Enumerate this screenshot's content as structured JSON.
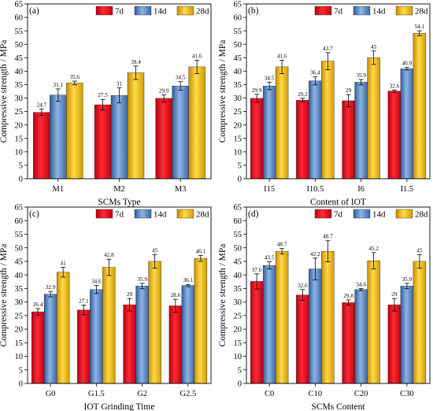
{
  "colors": {
    "7d": "#e4001b",
    "14d": "#4a7fc1",
    "28d": "#e8b400"
  },
  "chart_data": [
    {
      "type": "bar",
      "panel_label": "(a)",
      "categories": [
        "M1",
        "M2",
        "M3"
      ],
      "series": [
        {
          "name": "7d",
          "values": [
            24.7,
            27.5,
            29.9
          ],
          "errors": [
            1.2,
            2.0,
            1.3
          ]
        },
        {
          "name": "14d",
          "values": [
            31.1,
            31,
            34.5
          ],
          "errors": [
            2.3,
            2.8,
            1.6
          ]
        },
        {
          "name": "28d",
          "values": [
            35.6,
            39.4,
            41.6
          ],
          "errors": [
            0.7,
            2.5,
            2.5
          ]
        }
      ],
      "labels": [
        [
          "24.7",
          "27.5",
          "29.9"
        ],
        [
          "31.1",
          "31",
          "34.5"
        ],
        [
          "35.6",
          "39.4",
          "41.6"
        ]
      ],
      "xlabel": "SCMs Type",
      "ylabel": "Compressive strength / MPa",
      "ylim": [
        0,
        65
      ],
      "yticks": [
        "0",
        "5",
        "10",
        "15",
        "20",
        "25",
        "30",
        "35",
        "40",
        "45",
        "50",
        "55",
        "60",
        "65"
      ],
      "legend": [
        "7d",
        "14d",
        "28d"
      ]
    },
    {
      "type": "bar",
      "panel_label": "(b)",
      "categories": [
        "I15",
        "I10.5",
        "I6",
        "I1.5"
      ],
      "series": [
        {
          "name": "7d",
          "values": [
            29.9,
            29.2,
            29,
            32.6
          ],
          "errors": [
            1.5,
            0.7,
            2.3,
            0.4
          ]
        },
        {
          "name": "14d",
          "values": [
            34.5,
            36.4,
            35.9,
            40.9
          ],
          "errors": [
            1.4,
            1.5,
            1.0,
            0.5
          ]
        },
        {
          "name": "28d",
          "values": [
            41.6,
            43.7,
            45,
            54.1
          ],
          "errors": [
            2.5,
            3.2,
            2.5,
            0.9
          ]
        }
      ],
      "labels": [
        [
          "29.9",
          "29.2",
          "29",
          "32.6"
        ],
        [
          "34.5",
          "36.4",
          "35.9",
          "40.9"
        ],
        [
          "41.6",
          "43.7",
          "45",
          "54.1"
        ]
      ],
      "xlabel": "Content of IOT",
      "ylabel": "Compressive strength / MPa",
      "ylim": [
        0,
        65
      ],
      "yticks": [
        "0",
        "5",
        "10",
        "15",
        "20",
        "25",
        "30",
        "35",
        "40",
        "45",
        "50",
        "55",
        "60",
        "65"
      ],
      "legend": [
        "7d",
        "14d",
        "28d"
      ]
    },
    {
      "type": "bar",
      "panel_label": "(c)",
      "categories": [
        "G0",
        "G1.5",
        "G2",
        "G2.5"
      ],
      "series": [
        {
          "name": "7d",
          "values": [
            26.4,
            27.1,
            29,
            28.6
          ],
          "errors": [
            1.2,
            1.8,
            2.3,
            2.4
          ]
        },
        {
          "name": "14d",
          "values": [
            32.9,
            34.6,
            35.9,
            36.1
          ],
          "errors": [
            1.0,
            1.5,
            1.0,
            0.4
          ]
        },
        {
          "name": "28d",
          "values": [
            41,
            42.8,
            45,
            46.1
          ],
          "errors": [
            1.8,
            3.0,
            2.5,
            1.1
          ]
        }
      ],
      "labels": [
        [
          "26.4",
          "27.1",
          "29",
          "28.6"
        ],
        [
          "32.9",
          "34.6",
          "35.9",
          "36.1"
        ],
        [
          "41",
          "42.8",
          "45",
          "46.1"
        ]
      ],
      "xlabel": "IOT Grinding Time",
      "ylabel": "Compressive strength / MPa",
      "ylim": [
        0,
        65
      ],
      "yticks": [
        "0",
        "5",
        "10",
        "15",
        "20",
        "25",
        "30",
        "35",
        "40",
        "45",
        "50",
        "55",
        "60",
        "65"
      ],
      "legend": [
        "7d",
        "14d",
        "28d"
      ]
    },
    {
      "type": "bar",
      "panel_label": "(d)",
      "categories": [
        "C0",
        "C10",
        "C20",
        "C30"
      ],
      "series": [
        {
          "name": "7d",
          "values": [
            37.6,
            32.6,
            29.8,
            29
          ],
          "errors": [
            2.8,
            2.0,
            1.0,
            2.3
          ]
        },
        {
          "name": "14d",
          "values": [
            43.5,
            42.2,
            34.6,
            35.9
          ],
          "errors": [
            1.3,
            4.0,
            0.4,
            1.0
          ]
        },
        {
          "name": "28d",
          "values": [
            48.7,
            48.7,
            45.2,
            45
          ],
          "errors": [
            1.0,
            3.9,
            3.0,
            2.5
          ]
        }
      ],
      "labels": [
        [
          "37.6",
          "32.6",
          "29.8",
          "29"
        ],
        [
          "43.5",
          "42.2",
          "34.6",
          "35.9"
        ],
        [
          "48.7",
          "48.7",
          "45.2",
          "45"
        ]
      ],
      "xlabel": "SCMs Content",
      "ylabel": "Compressive strength / MPa",
      "ylim": [
        0,
        65
      ],
      "yticks": [
        "0",
        "5",
        "10",
        "15",
        "20",
        "25",
        "30",
        "35",
        "40",
        "45",
        "50",
        "55",
        "60",
        "65"
      ],
      "legend": [
        "7d",
        "14d",
        "28d"
      ]
    }
  ]
}
